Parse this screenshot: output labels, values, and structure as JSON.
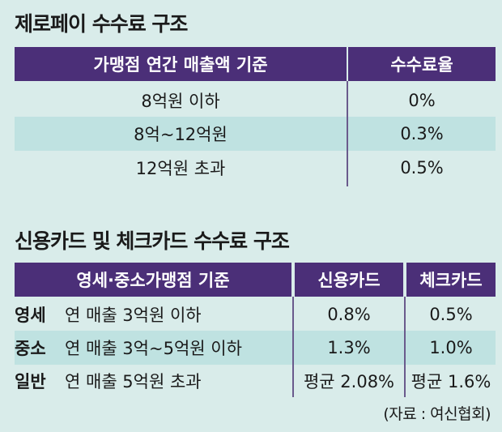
{
  "zeropay": {
    "title": "제로페이 수수료 구조",
    "headers": [
      "가맹점 연간 매출액 기준",
      "수수료율"
    ],
    "rows": [
      {
        "criterion": "8억원 이하",
        "rate": "0%"
      },
      {
        "criterion": "8억~12억원",
        "rate": "0.3%"
      },
      {
        "criterion": "12억원 초과",
        "rate": "0.5%"
      }
    ]
  },
  "cards": {
    "title": "신용카드 및 체크카드 수수료 구조",
    "headers": [
      "영세·중소가맹점 기준",
      "신용카드",
      "체크카드"
    ],
    "rows": [
      {
        "type": "영세",
        "criterion": "연 매출 3억원 이하",
        "credit": "0.8%",
        "check": "0.5%"
      },
      {
        "type": "중소",
        "criterion": "연 매출 3억~5억원 이하",
        "credit": "1.3%",
        "check": "1.0%"
      },
      {
        "type": "일반",
        "criterion": "연 매출 5억원 초과",
        "credit": "평균 2.08%",
        "check": "평균 1.6%"
      }
    ]
  },
  "source": "(자료 : 여신협회)",
  "colors": {
    "header": "#4b2f78",
    "background": "#d9ecea",
    "shaded_row": "#bfe2e1"
  }
}
